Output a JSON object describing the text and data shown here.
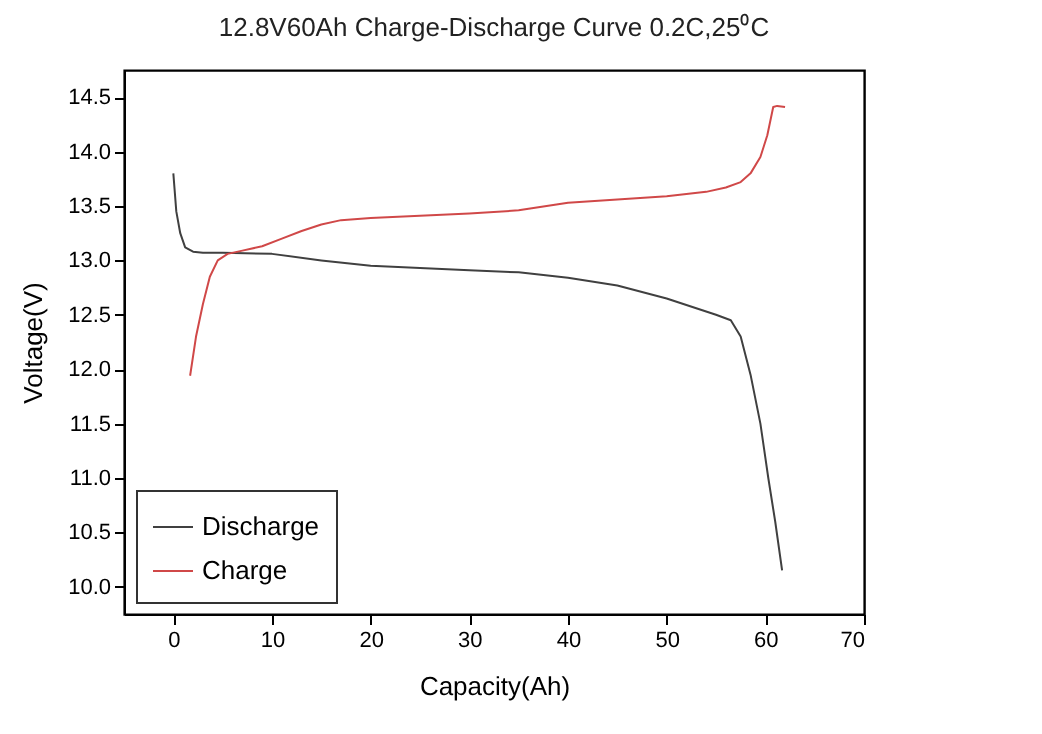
{
  "chart_data": {
    "type": "line",
    "title": "12.8V60Ah Charge-Discharge Curve  0.2C,25⁰C",
    "xlabel": "Capacity(Ah)",
    "ylabel": "Voltage(V)",
    "xlim": [
      -5,
      70
    ],
    "xticks": [
      0,
      10,
      20,
      30,
      40,
      50,
      60,
      70
    ],
    "ylim": [
      9.75,
      14.75
    ],
    "yticks": [
      {
        "value": 10,
        "label": "10.0"
      },
      {
        "value": 10.5,
        "label": "10.5"
      },
      {
        "value": 11,
        "label": "11.0"
      },
      {
        "value": 11.5,
        "label": "11.5"
      },
      {
        "value": 12,
        "label": "12.0"
      },
      {
        "value": 12.5,
        "label": "12.5"
      },
      {
        "value": 13,
        "label": "13.0"
      },
      {
        "value": 13.5,
        "label": "13.5"
      },
      {
        "value": 14,
        "label": "14.0"
      },
      {
        "value": 14.5,
        "label": "14.5"
      }
    ],
    "grid": false,
    "legend": "bottom left",
    "marker": "none",
    "line_style": "solid",
    "series": [
      {
        "name": "Discharge",
        "color": "#404040",
        "x": [
          0,
          0.3,
          0.7,
          1.2,
          2,
          3,
          5,
          10,
          15,
          20,
          25,
          30,
          35,
          40,
          45,
          50,
          53,
          55,
          56.5,
          57.5,
          58.5,
          59.5,
          60.3,
          61,
          61.7
        ],
        "values": [
          13.8,
          13.45,
          13.25,
          13.12,
          13.08,
          13.07,
          13.07,
          13.06,
          13.0,
          12.95,
          12.93,
          12.91,
          12.89,
          12.84,
          12.77,
          12.65,
          12.56,
          12.5,
          12.45,
          12.3,
          11.95,
          11.5,
          11.0,
          10.6,
          10.15
        ]
      },
      {
        "name": "Charge",
        "color": "#d04848",
        "x": [
          1.7,
          2.3,
          3,
          3.7,
          4.5,
          5.5,
          7,
          9,
          11,
          13,
          15,
          17,
          20,
          25,
          30,
          35,
          40,
          45,
          50,
          54,
          56,
          57.5,
          58.5,
          59.5,
          60.2,
          60.8,
          61.2,
          62
        ],
        "values": [
          11.94,
          12.3,
          12.6,
          12.85,
          13.0,
          13.06,
          13.09,
          13.13,
          13.2,
          13.27,
          13.33,
          13.37,
          13.39,
          13.41,
          13.43,
          13.46,
          13.53,
          13.56,
          13.59,
          13.63,
          13.67,
          13.72,
          13.8,
          13.95,
          14.15,
          14.41,
          14.42,
          14.41
        ]
      }
    ]
  }
}
